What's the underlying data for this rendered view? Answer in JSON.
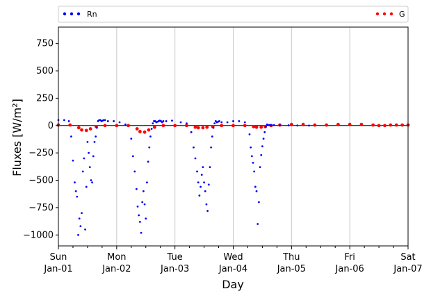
{
  "chart_data": {
    "type": "scatter",
    "title": "",
    "xlabel": "Day",
    "ylabel": "Fluxes [W/m²]",
    "ylim": [
      -1100,
      900
    ],
    "xlim": [
      0,
      6
    ],
    "grid": "vertical",
    "legend_placement": "top",
    "y_ticks": [
      {
        "value": 750,
        "label": "750"
      },
      {
        "value": 500,
        "label": "500"
      },
      {
        "value": 250,
        "label": "250"
      },
      {
        "value": 0,
        "label": "0"
      },
      {
        "value": -250,
        "label": "−250"
      },
      {
        "value": -500,
        "label": "−500"
      },
      {
        "value": -750,
        "label": "−750"
      },
      {
        "value": -1000,
        "label": "−1000"
      }
    ],
    "x_ticks": [
      {
        "value": 0,
        "line1": "Sun",
        "line2": "Jan-01"
      },
      {
        "value": 1,
        "line1": "Mon",
        "line2": "Jan-02"
      },
      {
        "value": 2,
        "line1": "Tue",
        "line2": "Jan-03"
      },
      {
        "value": 3,
        "line1": "Wed",
        "line2": "Jan-04"
      },
      {
        "value": 4,
        "line1": "Thu",
        "line2": "Jan-05"
      },
      {
        "value": 5,
        "line1": "Fri",
        "line2": "Jan-06"
      },
      {
        "value": 6,
        "line1": "Sat",
        "line2": "Jan-07"
      }
    ],
    "series": [
      {
        "name": "Rn",
        "color": "#0000ff",
        "marker": "dot",
        "x": [
          0.0,
          0.1,
          0.18,
          0.22,
          0.25,
          0.28,
          0.3,
          0.32,
          0.34,
          0.36,
          0.38,
          0.4,
          0.42,
          0.44,
          0.46,
          0.48,
          0.5,
          0.52,
          0.54,
          0.56,
          0.58,
          0.6,
          0.62,
          0.64,
          0.66,
          0.68,
          0.7,
          0.72,
          0.74,
          0.76,
          0.78,
          0.8,
          0.85,
          0.95,
          1.05,
          1.15,
          1.25,
          1.28,
          1.31,
          1.34,
          1.36,
          1.38,
          1.4,
          1.42,
          1.44,
          1.46,
          1.48,
          1.5,
          1.52,
          1.54,
          1.56,
          1.58,
          1.6,
          1.62,
          1.64,
          1.66,
          1.68,
          1.7,
          1.72,
          1.74,
          1.76,
          1.78,
          1.8,
          1.85,
          1.95,
          2.1,
          2.2,
          2.28,
          2.32,
          2.35,
          2.38,
          2.4,
          2.42,
          2.44,
          2.46,
          2.48,
          2.5,
          2.52,
          2.54,
          2.56,
          2.58,
          2.6,
          2.62,
          2.64,
          2.66,
          2.68,
          2.7,
          2.72,
          2.74,
          2.76,
          2.8,
          2.9,
          3.0,
          3.1,
          3.2,
          3.28,
          3.3,
          3.32,
          3.34,
          3.36,
          3.38,
          3.4,
          3.42,
          3.44,
          3.46,
          3.48,
          3.5,
          3.52,
          3.54,
          3.56,
          3.58,
          3.6,
          3.62,
          3.64,
          3.66,
          3.7,
          3.8,
          3.95,
          4.1,
          4.3
        ],
        "y": [
          50,
          50,
          40,
          -100,
          -320,
          -520,
          -600,
          -650,
          -1000,
          -850,
          -920,
          -800,
          -420,
          -300,
          -950,
          -560,
          -150,
          -250,
          -380,
          -500,
          -520,
          -280,
          -150,
          -100,
          -20,
          40,
          50,
          50,
          40,
          45,
          50,
          50,
          40,
          40,
          30,
          10,
          -120,
          -280,
          -420,
          -580,
          -740,
          -820,
          -880,
          -980,
          -700,
          -600,
          -720,
          -850,
          -520,
          -330,
          -200,
          -100,
          -30,
          20,
          40,
          40,
          30,
          35,
          40,
          45,
          40,
          30,
          40,
          40,
          45,
          30,
          20,
          -60,
          -200,
          -300,
          -420,
          -520,
          -640,
          -560,
          -450,
          -380,
          -520,
          -600,
          -720,
          -780,
          -540,
          -380,
          -200,
          -100,
          -20,
          20,
          40,
          30,
          35,
          40,
          30,
          30,
          40,
          40,
          30,
          -80,
          -200,
          -280,
          -340,
          -420,
          -560,
          -600,
          -900,
          -700,
          -380,
          -270,
          -190,
          -120,
          -60,
          -10,
          10,
          5,
          5,
          5,
          5,
          5,
          3,
          2,
          1,
          0
        ]
      },
      {
        "name": "G",
        "color": "#ff0000",
        "marker": "dot",
        "x": [
          0.0,
          0.2,
          0.35,
          0.4,
          0.48,
          0.55,
          0.65,
          0.8,
          1.0,
          1.2,
          1.35,
          1.4,
          1.48,
          1.55,
          1.65,
          1.8,
          2.0,
          2.2,
          2.35,
          2.4,
          2.48,
          2.55,
          2.65,
          2.8,
          3.0,
          3.2,
          3.35,
          3.4,
          3.48,
          3.55,
          3.65,
          3.8,
          4.0,
          4.2,
          4.4,
          4.6,
          4.8,
          5.0,
          5.2,
          5.4,
          5.5,
          5.6,
          5.7,
          5.8,
          5.9,
          6.0
        ],
        "y": [
          5,
          5,
          -20,
          -40,
          -45,
          -30,
          -10,
          0,
          0,
          0,
          -30,
          -55,
          -60,
          -40,
          -15,
          0,
          0,
          0,
          -15,
          -20,
          -20,
          -15,
          -10,
          0,
          0,
          0,
          -10,
          -15,
          -15,
          -10,
          0,
          5,
          10,
          10,
          5,
          5,
          10,
          10,
          10,
          5,
          0,
          0,
          5,
          5,
          5,
          5
        ]
      }
    ]
  }
}
